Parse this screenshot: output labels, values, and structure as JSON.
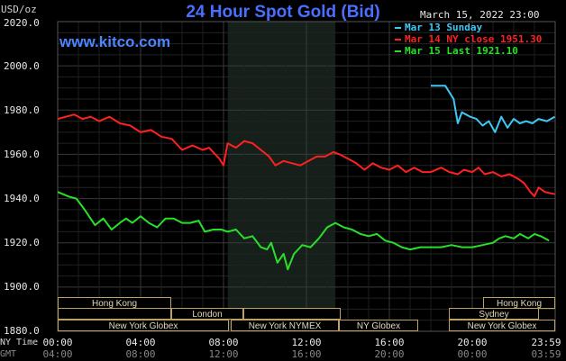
{
  "header": {
    "title": "24 Hour Spot Gold (Bid)",
    "website": "www.kitco.com",
    "y_unit": "USD/oz",
    "datetime": "March 15, 2022 23:00"
  },
  "legend": [
    {
      "label": "Mar 13 Sunday",
      "color": "#3fc8f5"
    },
    {
      "label": "Mar 14 NY close 1951.30",
      "color": "#ff2020"
    },
    {
      "label": "Mar 15 Last 1921.10",
      "color": "#28e028"
    }
  ],
  "axis": {
    "ny_time_label": "NY Time",
    "gmt_label": "GMT",
    "y_ticks": [
      "2020.0",
      "2000.0",
      "1980.0",
      "1960.0",
      "1940.0",
      "1920.0",
      "1900.0",
      "1880.0"
    ],
    "ny_ticks": [
      "00:00",
      "04:00",
      "08:00",
      "12:00",
      "16:00",
      "20:00",
      "23:59"
    ],
    "gmt_ticks": [
      "04:00",
      "08:00",
      "12:00",
      "16:00",
      "20:00",
      "00:00",
      "03:59"
    ]
  },
  "sessions": [
    {
      "label": "Hong Kong"
    },
    {
      "label": "Hong Kong"
    },
    {
      "label": "London"
    },
    {
      "label": "Sydney"
    },
    {
      "label": "New York Globex"
    },
    {
      "label": "New York NYMEX"
    },
    {
      "label": "NY Globex"
    },
    {
      "label": "New York Globex"
    }
  ],
  "chart_data": {
    "type": "line",
    "title": "24 Hour Spot Gold (Bid)",
    "ylabel": "USD/oz",
    "ylim": [
      1880,
      2020
    ],
    "x_unit": "NY time hours",
    "xlim": [
      0,
      24
    ],
    "highlight_band": [
      8.2,
      13.4
    ],
    "series": [
      {
        "name": "Mar 13 Sunday",
        "color": "#3fc8f5",
        "points": [
          [
            18.0,
            1991
          ],
          [
            18.7,
            1991
          ],
          [
            19.1,
            1985
          ],
          [
            19.3,
            1974
          ],
          [
            19.5,
            1979
          ],
          [
            19.9,
            1977
          ],
          [
            20.2,
            1976
          ],
          [
            20.5,
            1973
          ],
          [
            20.8,
            1975
          ],
          [
            21.1,
            1970
          ],
          [
            21.4,
            1977
          ],
          [
            21.7,
            1972
          ],
          [
            22.0,
            1976
          ],
          [
            22.3,
            1974
          ],
          [
            22.6,
            1975
          ],
          [
            22.9,
            1974
          ],
          [
            23.2,
            1976
          ],
          [
            23.6,
            1975
          ],
          [
            23.98,
            1977
          ]
        ]
      },
      {
        "name": "Mar 14 NY close 1951.30",
        "color": "#ff2020",
        "points": [
          [
            0.0,
            1976
          ],
          [
            0.8,
            1978
          ],
          [
            1.2,
            1976
          ],
          [
            1.6,
            1977
          ],
          [
            2.0,
            1975
          ],
          [
            2.5,
            1977
          ],
          [
            3.0,
            1974
          ],
          [
            3.5,
            1973
          ],
          [
            4.0,
            1970
          ],
          [
            4.5,
            1971
          ],
          [
            5.0,
            1968
          ],
          [
            5.5,
            1967
          ],
          [
            6.0,
            1962
          ],
          [
            6.5,
            1964
          ],
          [
            7.0,
            1962
          ],
          [
            7.3,
            1963
          ],
          [
            7.8,
            1958
          ],
          [
            8.0,
            1955
          ],
          [
            8.2,
            1965
          ],
          [
            8.6,
            1963
          ],
          [
            9.0,
            1966
          ],
          [
            9.4,
            1965
          ],
          [
            9.8,
            1962
          ],
          [
            10.2,
            1959
          ],
          [
            10.5,
            1955
          ],
          [
            10.9,
            1957
          ],
          [
            11.3,
            1956
          ],
          [
            11.7,
            1955
          ],
          [
            12.1,
            1957
          ],
          [
            12.5,
            1959
          ],
          [
            12.9,
            1959
          ],
          [
            13.3,
            1961
          ],
          [
            13.6,
            1960
          ],
          [
            14.0,
            1958
          ],
          [
            14.4,
            1956
          ],
          [
            14.8,
            1953
          ],
          [
            15.2,
            1956
          ],
          [
            15.6,
            1954
          ],
          [
            16.0,
            1953
          ],
          [
            16.4,
            1955
          ],
          [
            16.8,
            1952
          ],
          [
            17.2,
            1954
          ],
          [
            17.6,
            1952
          ],
          [
            18.0,
            1952
          ],
          [
            18.5,
            1954
          ],
          [
            18.9,
            1952
          ],
          [
            19.3,
            1951
          ],
          [
            19.6,
            1953
          ],
          [
            20.0,
            1952
          ],
          [
            20.3,
            1954
          ],
          [
            20.6,
            1951
          ],
          [
            21.0,
            1952
          ],
          [
            21.4,
            1950
          ],
          [
            21.8,
            1951
          ],
          [
            22.2,
            1949
          ],
          [
            22.5,
            1947
          ],
          [
            22.8,
            1943
          ],
          [
            23.0,
            1941
          ],
          [
            23.2,
            1945
          ],
          [
            23.5,
            1943
          ],
          [
            23.98,
            1942
          ]
        ]
      },
      {
        "name": "Mar 15 Last 1921.10",
        "color": "#28e028",
        "points": [
          [
            0.0,
            1943
          ],
          [
            0.5,
            1941
          ],
          [
            0.9,
            1940
          ],
          [
            1.3,
            1935
          ],
          [
            1.8,
            1928
          ],
          [
            2.2,
            1931
          ],
          [
            2.6,
            1926
          ],
          [
            3.0,
            1929
          ],
          [
            3.3,
            1931
          ],
          [
            3.6,
            1929
          ],
          [
            4.0,
            1932
          ],
          [
            4.4,
            1929
          ],
          [
            4.8,
            1927
          ],
          [
            5.2,
            1931
          ],
          [
            5.6,
            1931
          ],
          [
            6.0,
            1929
          ],
          [
            6.4,
            1929
          ],
          [
            6.8,
            1930
          ],
          [
            7.1,
            1925
          ],
          [
            7.5,
            1926
          ],
          [
            7.9,
            1926
          ],
          [
            8.2,
            1925
          ],
          [
            8.6,
            1926
          ],
          [
            9.0,
            1922
          ],
          [
            9.4,
            1923
          ],
          [
            9.8,
            1918
          ],
          [
            10.1,
            1917
          ],
          [
            10.3,
            1920
          ],
          [
            10.6,
            1911
          ],
          [
            10.9,
            1915
          ],
          [
            11.1,
            1908
          ],
          [
            11.4,
            1915
          ],
          [
            11.8,
            1919
          ],
          [
            12.2,
            1918
          ],
          [
            12.6,
            1922
          ],
          [
            13.0,
            1927
          ],
          [
            13.4,
            1929
          ],
          [
            13.8,
            1927
          ],
          [
            14.2,
            1926
          ],
          [
            14.6,
            1924
          ],
          [
            15.0,
            1923
          ],
          [
            15.4,
            1924
          ],
          [
            15.8,
            1921
          ],
          [
            16.2,
            1920
          ],
          [
            16.6,
            1918
          ],
          [
            17.0,
            1917
          ],
          [
            17.5,
            1918
          ],
          [
            18.0,
            1918
          ],
          [
            18.5,
            1918
          ],
          [
            19.0,
            1919
          ],
          [
            19.5,
            1918
          ],
          [
            20.0,
            1918
          ],
          [
            20.5,
            1919
          ],
          [
            21.0,
            1920
          ],
          [
            21.3,
            1922
          ],
          [
            21.6,
            1923
          ],
          [
            22.0,
            1922
          ],
          [
            22.3,
            1924
          ],
          [
            22.7,
            1922
          ],
          [
            23.0,
            1924
          ],
          [
            23.3,
            1923
          ],
          [
            23.7,
            1921
          ]
        ]
      }
    ]
  }
}
